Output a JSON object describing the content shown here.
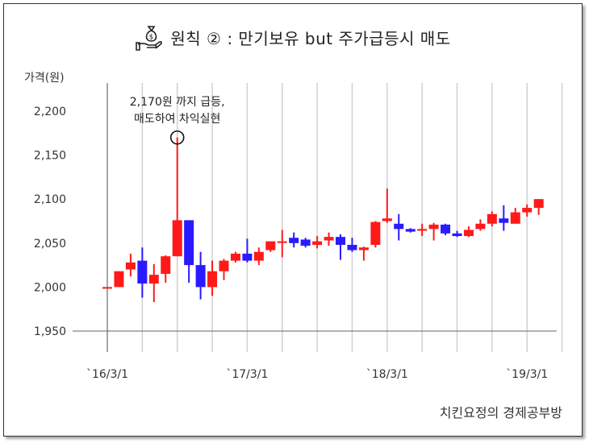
{
  "title": "원칙 ② :  만기보유 but 주가급등시 매도",
  "icon": "money-bag-hand-icon",
  "source": "치킨요정의 경제공부방",
  "colors": {
    "up": "#ff1a1a",
    "down": "#2a1aff",
    "grid": "#d0d0d0",
    "axis": "#666666"
  },
  "chart_data": {
    "type": "candlestick",
    "ylabel": "가격(원)",
    "ylim": [
      1950,
      2200
    ],
    "yticks": [
      "2,200",
      "2,150",
      "2,100",
      "2,050",
      "2,000",
      "1,950"
    ],
    "ytick_values": [
      2200,
      2150,
      2100,
      2050,
      2000,
      1950
    ],
    "xlabels": [
      "`16/3/1",
      "`17/3/1",
      "`18/3/1",
      "`19/3/1"
    ],
    "xlabel_index": [
      0,
      12,
      24,
      36
    ],
    "grid": "vertical",
    "annotation": {
      "lines": [
        "2,170원 까지 급등,",
        "매도하여 차익실현"
      ],
      "index": 6,
      "value": 2170
    },
    "candles": [
      {
        "open": 2000,
        "close": 2000,
        "high": 2000,
        "low": 2000
      },
      {
        "open": 2000,
        "close": 2018,
        "high": 2018,
        "low": 2000
      },
      {
        "open": 2020,
        "close": 2028,
        "high": 2038,
        "low": 2012
      },
      {
        "open": 2030,
        "close": 2004,
        "high": 2045,
        "low": 1988
      },
      {
        "open": 2004,
        "close": 2014,
        "high": 2026,
        "low": 1983
      },
      {
        "open": 2015,
        "close": 2035,
        "high": 2036,
        "low": 2005
      },
      {
        "open": 2035,
        "close": 2076,
        "high": 2170,
        "low": 2035
      },
      {
        "open": 2076,
        "close": 2025,
        "high": 2076,
        "low": 2005
      },
      {
        "open": 2025,
        "close": 2000,
        "high": 2040,
        "low": 1986
      },
      {
        "open": 2000,
        "close": 2018,
        "high": 2030,
        "low": 1990
      },
      {
        "open": 2018,
        "close": 2030,
        "high": 2032,
        "low": 2008
      },
      {
        "open": 2030,
        "close": 2038,
        "high": 2040,
        "low": 2028
      },
      {
        "open": 2038,
        "close": 2030,
        "high": 2055,
        "low": 2028
      },
      {
        "open": 2030,
        "close": 2040,
        "high": 2045,
        "low": 2025
      },
      {
        "open": 2042,
        "close": 2052,
        "high": 2052,
        "low": 2040
      },
      {
        "open": 2052,
        "close": 2052,
        "high": 2065,
        "low": 2034
      },
      {
        "open": 2056,
        "close": 2050,
        "high": 2062,
        "low": 2045
      },
      {
        "open": 2054,
        "close": 2047,
        "high": 2056,
        "low": 2045
      },
      {
        "open": 2048,
        "close": 2052,
        "high": 2058,
        "low": 2044
      },
      {
        "open": 2053,
        "close": 2057,
        "high": 2062,
        "low": 2047
      },
      {
        "open": 2057,
        "close": 2048,
        "high": 2060,
        "low": 2031
      },
      {
        "open": 2048,
        "close": 2042,
        "high": 2056,
        "low": 2040
      },
      {
        "open": 2042,
        "close": 2045,
        "high": 2046,
        "low": 2030
      },
      {
        "open": 2048,
        "close": 2074,
        "high": 2075,
        "low": 2045
      },
      {
        "open": 2075,
        "close": 2078,
        "high": 2112,
        "low": 2073
      },
      {
        "open": 2072,
        "close": 2066,
        "high": 2083,
        "low": 2053
      },
      {
        "open": 2066,
        "close": 2063,
        "high": 2067,
        "low": 2062
      },
      {
        "open": 2064,
        "close": 2066,
        "high": 2072,
        "low": 2058
      },
      {
        "open": 2066,
        "close": 2071,
        "high": 2073,
        "low": 2053
      },
      {
        "open": 2071,
        "close": 2061,
        "high": 2072,
        "low": 2059
      },
      {
        "open": 2061,
        "close": 2058,
        "high": 2064,
        "low": 2057
      },
      {
        "open": 2058,
        "close": 2065,
        "high": 2069,
        "low": 2057
      },
      {
        "open": 2066,
        "close": 2072,
        "high": 2077,
        "low": 2064
      },
      {
        "open": 2072,
        "close": 2083,
        "high": 2086,
        "low": 2069
      },
      {
        "open": 2078,
        "close": 2073,
        "high": 2093,
        "low": 2064
      },
      {
        "open": 2072,
        "close": 2085,
        "high": 2090,
        "low": 2072
      },
      {
        "open": 2085,
        "close": 2090,
        "high": 2094,
        "low": 2080
      },
      {
        "open": 2090,
        "close": 2100,
        "high": 2100,
        "low": 2082
      }
    ]
  }
}
